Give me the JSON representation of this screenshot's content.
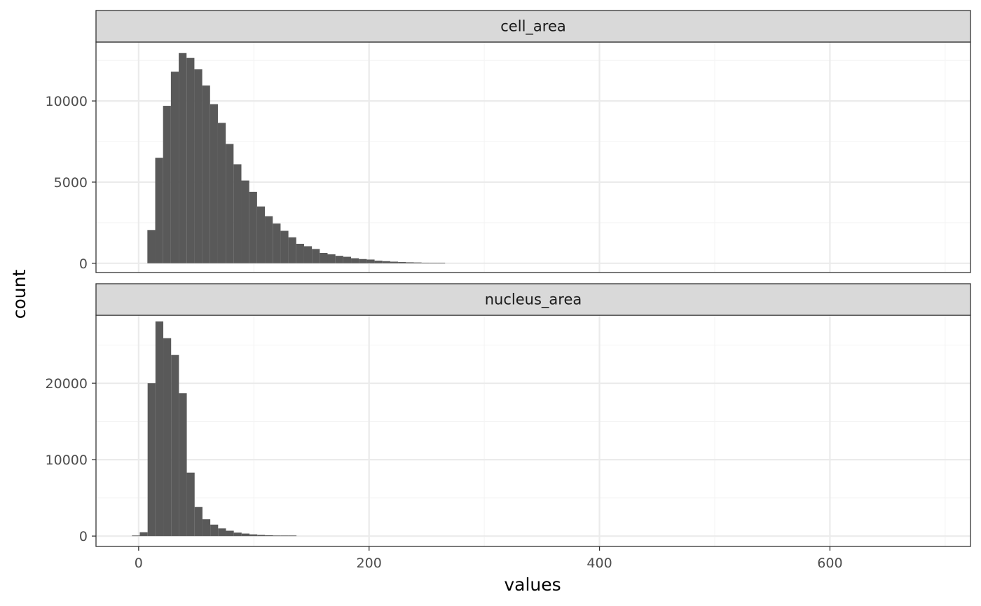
{
  "chart_data": {
    "type": "bar",
    "xlabel": "values",
    "ylabel": "count",
    "xlim": [
      -37,
      722
    ],
    "x_ticks": [
      0,
      200,
      400,
      600
    ],
    "x_tick_labels": [
      "0",
      "200",
      "400",
      "600"
    ],
    "x_minor_ticks": [
      100,
      300,
      500,
      700
    ],
    "bin_width": 6.8,
    "grid": true,
    "colors": {
      "bar": "#595959",
      "strip_bg": "#d9d9d9",
      "grid_major": "#ebebeb",
      "grid_minor": "#f4f4f4",
      "border": "#333333"
    },
    "panels": [
      {
        "strip": "cell_area",
        "ylim": [
          -570,
          13630
        ],
        "y_ticks": [
          0,
          5000,
          10000
        ],
        "y_tick_labels": [
          "0",
          "5000",
          "10000"
        ],
        "y_minor_ticks": [
          2500,
          7500,
          12500
        ],
        "bin_starts": [
          7.6,
          14.4,
          21.2,
          28.0,
          34.8,
          41.6,
          48.4,
          55.2,
          62.0,
          68.8,
          75.6,
          82.4,
          89.2,
          96.0,
          102.8,
          109.6,
          116.4,
          123.2,
          130.0,
          136.8,
          143.6,
          150.4,
          157.2,
          164.0,
          170.8,
          177.6,
          184.4,
          191.2,
          198.0,
          204.8,
          211.6,
          218.4,
          225.2,
          232.0,
          238.8,
          245.6,
          252.4,
          259.2
        ],
        "values": [
          2050,
          6500,
          9700,
          11800,
          12950,
          12650,
          11950,
          10950,
          9800,
          8650,
          7350,
          6100,
          5100,
          4400,
          3500,
          2900,
          2450,
          2000,
          1600,
          1200,
          1050,
          880,
          640,
          550,
          460,
          400,
          310,
          260,
          230,
          160,
          130,
          100,
          80,
          60,
          50,
          35,
          25,
          15
        ]
      },
      {
        "strip": "nucleus_area",
        "ylim": [
          -1360,
          28900
        ],
        "y_ticks": [
          0,
          10000,
          20000
        ],
        "y_tick_labels": [
          "0",
          "10000",
          "20000"
        ],
        "y_minor_ticks": [
          5000,
          15000,
          25000
        ],
        "bin_starts": [
          -5.8,
          1.0,
          7.8,
          14.6,
          21.4,
          28.2,
          35.0,
          41.8,
          48.6,
          55.4,
          62.2,
          69.0,
          75.8,
          82.6,
          89.4,
          96.2,
          103.0,
          109.8,
          116.6,
          123.4,
          130.2
        ],
        "values": [
          50,
          500,
          20000,
          28100,
          25900,
          23700,
          18700,
          8300,
          3800,
          2200,
          1500,
          1000,
          700,
          450,
          330,
          220,
          150,
          100,
          70,
          50,
          30
        ]
      }
    ]
  }
}
